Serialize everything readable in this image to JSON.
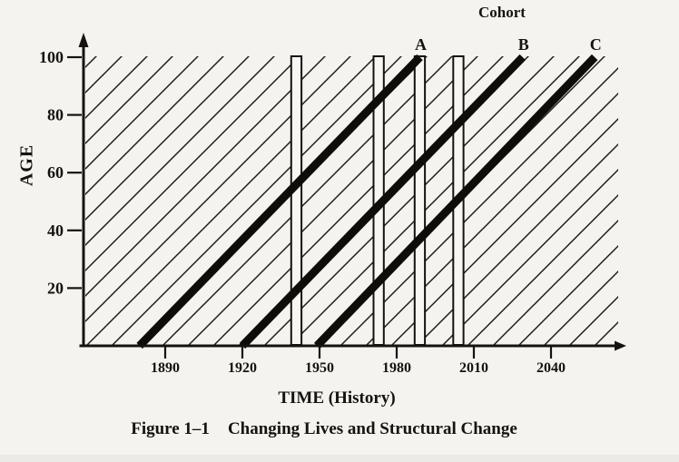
{
  "figure": {
    "cohort_header": "Cohort",
    "caption_prefix": "Figure 1–1",
    "caption_title": "Changing Lives and Structural Change"
  },
  "chart_data": {
    "type": "line",
    "title": "Changing Lives and Structural Change",
    "subtitle_above_plot": "Cohort",
    "xlabel": "TIME (History)",
    "ylabel": "AGE",
    "x_ticks": [
      1890,
      1920,
      1950,
      1980,
      2010,
      2040
    ],
    "y_ticks": [
      20,
      40,
      60,
      80,
      100
    ],
    "xlim": [
      1858,
      2066
    ],
    "ylim": [
      0,
      100
    ],
    "grid": false,
    "legend_position": "labels-at-line-tops",
    "background": "diagonal 45-degree hatching over entire plot area",
    "series": [
      {
        "name": "A",
        "kind": "cohort-lifeline",
        "points": [
          {
            "year": 1880,
            "age": 0
          },
          {
            "year": 1989,
            "age": 100
          }
        ]
      },
      {
        "name": "B",
        "kind": "cohort-lifeline",
        "points": [
          {
            "year": 1920,
            "age": 0
          },
          {
            "year": 2029,
            "age": 100
          }
        ]
      },
      {
        "name": "C",
        "kind": "cohort-lifeline",
        "points": [
          {
            "year": 1949,
            "age": 0
          },
          {
            "year": 2057,
            "age": 100
          }
        ]
      }
    ],
    "period_bars": {
      "description": "narrow white vertical bars spanning age 0-100, marking cross-section periods",
      "years": [
        1941,
        1973,
        1989,
        2004
      ],
      "width_years": 4
    },
    "colors": {
      "ink": "#16130f",
      "paper": "#f5f3f0",
      "cohort_line": "#0f0d0a"
    }
  }
}
